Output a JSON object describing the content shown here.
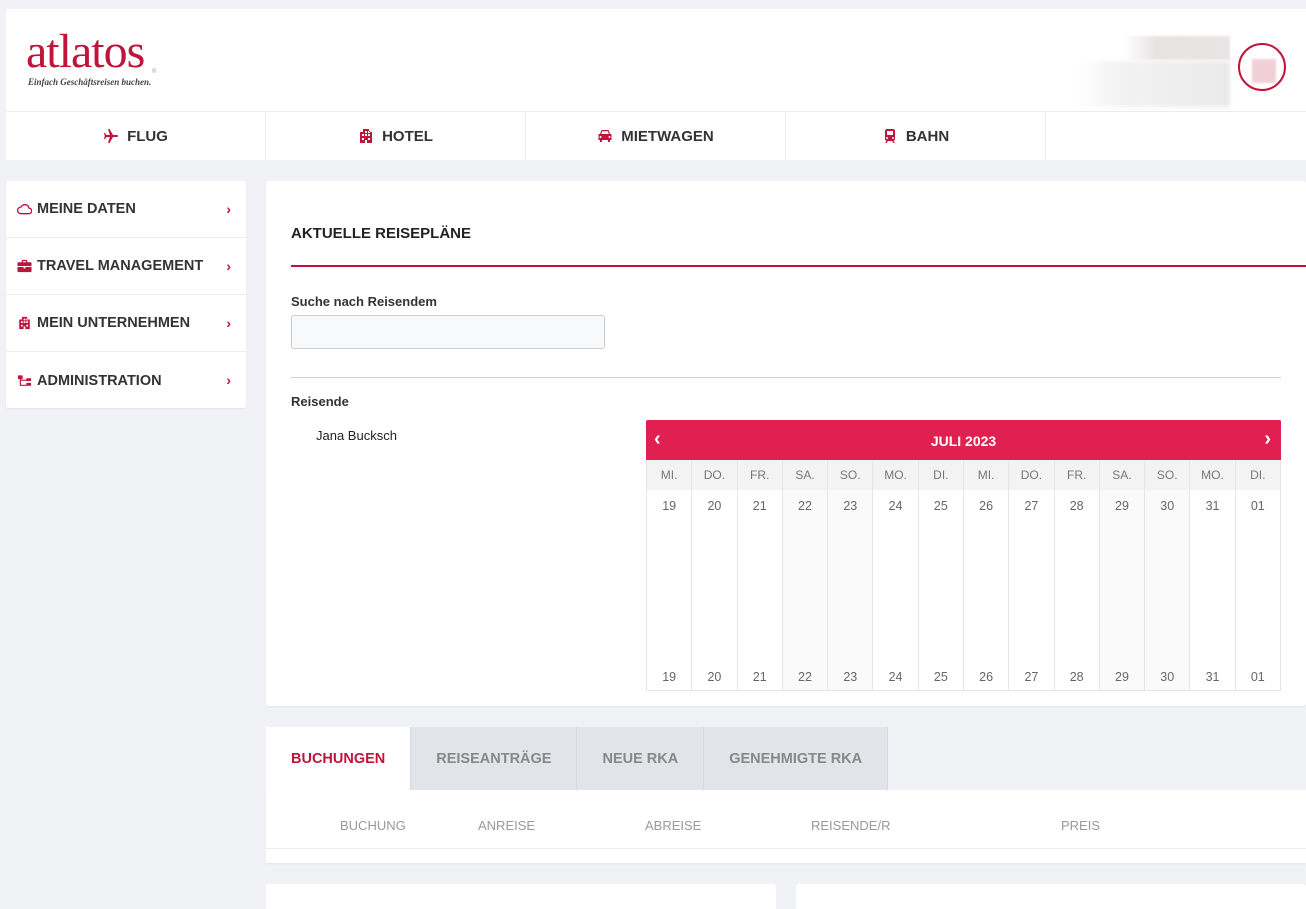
{
  "brand": {
    "name": "atlatos",
    "tagline": "Einfach Geschäftsreisen buchen."
  },
  "nav": [
    {
      "label": "FLUG",
      "icon": "plane-icon"
    },
    {
      "label": "HOTEL",
      "icon": "building-icon"
    },
    {
      "label": "MIETWAGEN",
      "icon": "car-icon"
    },
    {
      "label": "BAHN",
      "icon": "train-icon"
    }
  ],
  "sidebar": {
    "items": [
      {
        "label": "MEINE DATEN",
        "icon": "cloud-icon"
      },
      {
        "label": "TRAVEL MANAGEMENT",
        "icon": "briefcase-icon"
      },
      {
        "label": "MEIN UNTERNEHMEN",
        "icon": "building-icon"
      },
      {
        "label": "ADMINISTRATION",
        "icon": "sitemap-icon"
      }
    ]
  },
  "main": {
    "title": "AKTUELLE REISEPLÄNE",
    "search_label": "Suche nach Reisendem",
    "search_value": "",
    "travelers_label": "Reisende",
    "travelers": [
      "Jana Bucksch"
    ]
  },
  "calendar": {
    "month": "JULI 2023",
    "days": [
      {
        "dow": "MI.",
        "day": "19"
      },
      {
        "dow": "DO.",
        "day": "20"
      },
      {
        "dow": "FR.",
        "day": "21"
      },
      {
        "dow": "SA.",
        "day": "22"
      },
      {
        "dow": "SO.",
        "day": "23"
      },
      {
        "dow": "MO.",
        "day": "24"
      },
      {
        "dow": "DI.",
        "day": "25"
      },
      {
        "dow": "MI.",
        "day": "26"
      },
      {
        "dow": "DO.",
        "day": "27"
      },
      {
        "dow": "FR.",
        "day": "28"
      },
      {
        "dow": "SA.",
        "day": "29"
      },
      {
        "dow": "SO.",
        "day": "30"
      },
      {
        "dow": "MO.",
        "day": "31"
      },
      {
        "dow": "DI.",
        "day": "01"
      }
    ]
  },
  "tabs": {
    "items": [
      "BUCHUNGEN",
      "REISEANTRÄGE",
      "NEUE RKA",
      "GENEHMIGTE RKA"
    ],
    "active": 0,
    "columns": [
      "BUCHUNG",
      "ANREISE",
      "ABREISE",
      "REISENDE/R",
      "PREIS"
    ]
  },
  "colors": {
    "accent": "#c0143c",
    "calendar_header": "#e02050",
    "background": "#f0f2f5"
  }
}
